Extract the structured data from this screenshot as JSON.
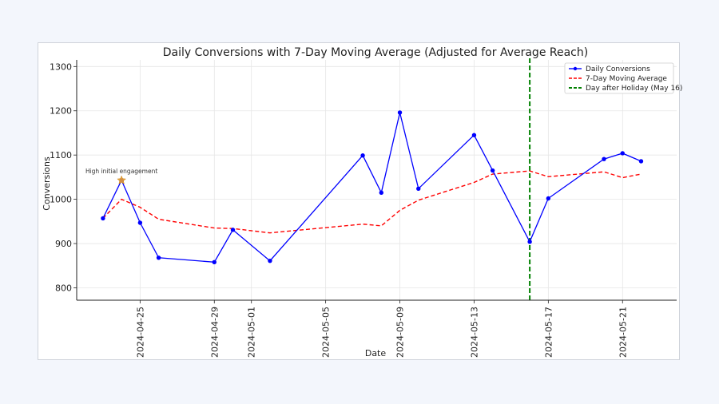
{
  "chart_data": {
    "type": "line",
    "title": "Daily Conversions with 7-Day Moving Average (Adjusted for Average Reach)",
    "xlabel": "Date",
    "ylabel": "Conversions",
    "x_tick_labels": [
      "2024-04-25",
      "2024-04-29",
      "2024-05-01",
      "2024-05-05",
      "2024-05-09",
      "2024-05-13",
      "2024-05-17",
      "2024-05-21"
    ],
    "x_range": [
      "2024-04-21T14:00",
      "2024-05-23T22:00"
    ],
    "ylim": [
      772,
      1315
    ],
    "y_ticks": [
      800,
      900,
      1000,
      1100,
      1200,
      1300
    ],
    "grid": true,
    "legend_placement": "top-right",
    "series": [
      {
        "name": "Daily Conversions",
        "color": "#0000ff",
        "style": "solid-with-markers",
        "x": [
          "2024-04-23",
          "2024-04-24",
          "2024-04-25",
          "2024-04-26",
          "2024-04-29",
          "2024-04-30",
          "2024-05-02",
          "2024-05-07",
          "2024-05-08",
          "2024-05-09",
          "2024-05-10",
          "2024-05-13",
          "2024-05-14",
          "2024-05-16",
          "2024-05-17",
          "2024-05-20",
          "2024-05-21",
          "2024-05-22"
        ],
        "values": [
          957,
          1043,
          947,
          868,
          858,
          931,
          861,
          1099,
          1015,
          1196,
          1024,
          1145,
          1065,
          904,
          1002,
          1091,
          1104,
          1086
        ]
      },
      {
        "name": "7-Day Moving Average",
        "color": "#ff0000",
        "style": "dashed",
        "x": [
          "2024-04-23",
          "2024-04-24",
          "2024-04-25",
          "2024-04-26",
          "2024-04-29",
          "2024-04-30",
          "2024-05-02",
          "2024-05-07",
          "2024-05-08",
          "2024-05-09",
          "2024-05-10",
          "2024-05-13",
          "2024-05-14",
          "2024-05-16",
          "2024-05-17",
          "2024-05-20",
          "2024-05-21",
          "2024-05-22"
        ],
        "values": [
          957,
          1000,
          982,
          955,
          935,
          934,
          924,
          944,
          940,
          975,
          998,
          1038,
          1057,
          1064,
          1051,
          1062,
          1049,
          1057
        ]
      }
    ],
    "vline": {
      "label": "Day after Holiday (May 16)",
      "x": "2024-05-16",
      "color": "#008000",
      "style": "dashed"
    },
    "annotation": {
      "text": "High initial engagement",
      "x": "2024-04-24",
      "value": 1043,
      "marker_color": "#f5a623"
    }
  }
}
